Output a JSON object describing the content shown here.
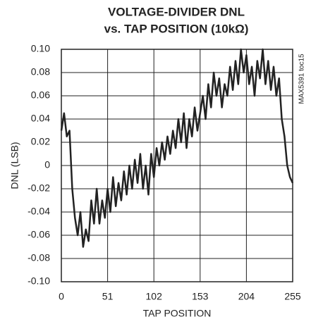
{
  "chart_data": {
    "type": "line",
    "title": "VOLTAGE-DIVIDER DNL",
    "subtitle": "vs. TAP POSITION (10kΩ)",
    "x_label": "TAP POSITION",
    "y_label": "DNL (LSB)",
    "annotation": "MAX5391 toc15",
    "x": [
      0,
      3,
      6,
      9,
      12,
      15,
      18,
      21,
      24,
      27,
      30,
      33,
      36,
      39,
      42,
      45,
      48,
      51,
      54,
      57,
      60,
      63,
      66,
      69,
      72,
      75,
      78,
      81,
      84,
      87,
      90,
      93,
      96,
      99,
      102,
      105,
      108,
      111,
      114,
      117,
      120,
      123,
      126,
      129,
      132,
      135,
      138,
      141,
      144,
      147,
      150,
      153,
      156,
      159,
      162,
      165,
      168,
      171,
      174,
      177,
      180,
      183,
      186,
      189,
      192,
      195,
      198,
      201,
      204,
      207,
      210,
      213,
      216,
      219,
      222,
      225,
      228,
      231,
      234,
      237,
      240,
      243,
      246,
      249,
      252,
      255
    ],
    "series": [
      {
        "name": "DNL",
        "color": "#222222",
        "values": [
          0.03,
          0.045,
          0.025,
          0.03,
          -0.02,
          -0.045,
          -0.06,
          -0.04,
          -0.07,
          -0.055,
          -0.065,
          -0.03,
          -0.05,
          -0.02,
          -0.05,
          -0.03,
          -0.045,
          -0.02,
          -0.04,
          -0.01,
          -0.035,
          -0.015,
          -0.03,
          -0.005,
          -0.025,
          0.0,
          -0.02,
          0.005,
          -0.015,
          0.01,
          -0.02,
          0.0,
          -0.025,
          0.01,
          -0.01,
          0.015,
          0.0,
          0.02,
          0.005,
          0.025,
          0.01,
          0.03,
          0.015,
          0.04,
          0.02,
          0.045,
          0.015,
          0.04,
          0.025,
          0.05,
          0.03,
          0.045,
          0.06,
          0.04,
          0.07,
          0.05,
          0.08,
          0.06,
          0.075,
          0.05,
          0.07,
          0.06,
          0.085,
          0.065,
          0.09,
          0.07,
          0.1,
          0.08,
          0.095,
          0.07,
          0.085,
          0.06,
          0.09,
          0.075,
          0.1,
          0.07,
          0.09,
          0.065,
          0.085,
          0.06,
          0.075,
          0.04,
          0.025,
          0.0,
          -0.01,
          -0.015
        ]
      }
    ],
    "xlim": [
      0,
      255
    ],
    "xticks": [
      0,
      51,
      102,
      153,
      204,
      255
    ],
    "ylim": [
      -0.1,
      0.1
    ],
    "yticks": [
      {
        "value": -0.1,
        "label": "-0.10"
      },
      -0.08,
      -0.06,
      -0.04,
      -0.02,
      0,
      0.02,
      0.04,
      0.06,
      0.08,
      {
        "value": 0.1,
        "label": "0.10"
      }
    ],
    "grid": true
  }
}
